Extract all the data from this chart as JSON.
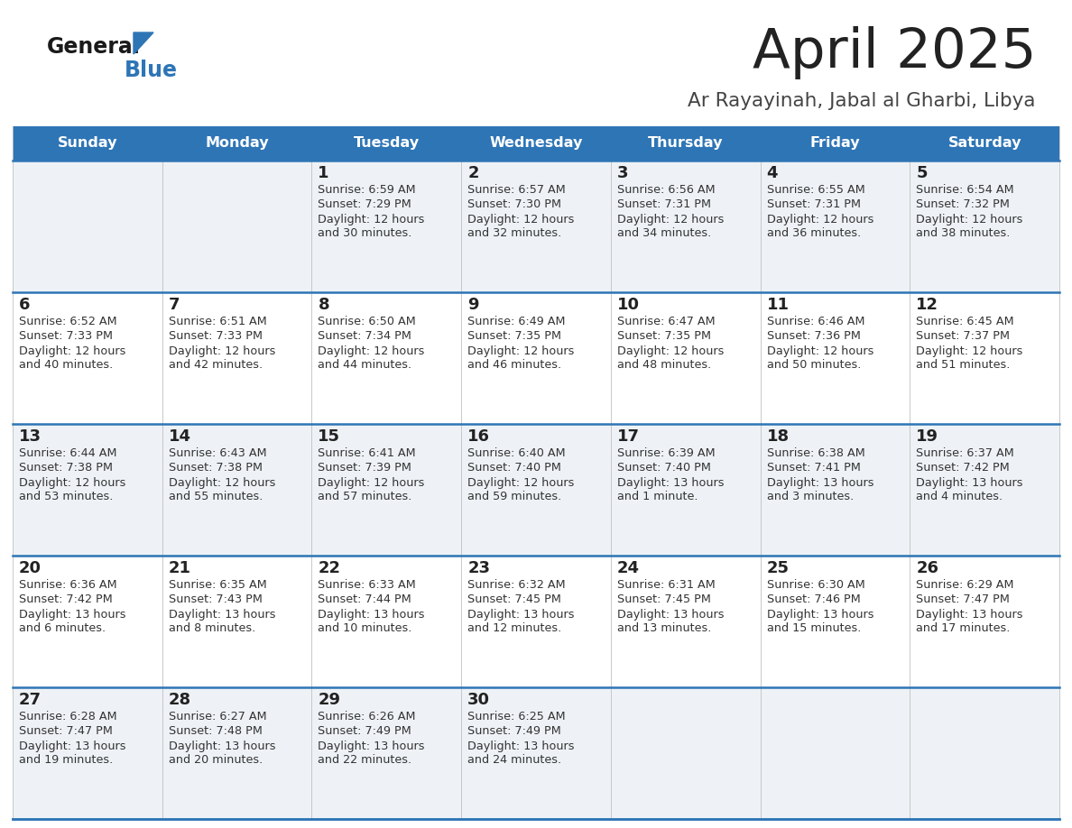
{
  "title": "April 2025",
  "subtitle": "Ar Rayayinah, Jabal al Gharbi, Libya",
  "header_bg_color": "#2E75B6",
  "header_text_color": "#FFFFFF",
  "day_names": [
    "Sunday",
    "Monday",
    "Tuesday",
    "Wednesday",
    "Thursday",
    "Friday",
    "Saturday"
  ],
  "odd_row_color": "#EEF2F6",
  "even_row_color": "#FFFFFF",
  "divider_color": "#2E75B6",
  "cell_divider_color": "#C0C0C0",
  "number_color": "#222222",
  "text_color": "#333333",
  "logo_general_color": "#1A1A1A",
  "logo_blue_color": "#2E75B6",
  "title_color": "#222222",
  "subtitle_color": "#444444",
  "cells": [
    [
      null,
      null,
      {
        "day": "1",
        "sunrise": "6:59 AM",
        "sunset": "7:29 PM",
        "daylight_h": "12 hours",
        "daylight_m": "and 30 minutes."
      },
      {
        "day": "2",
        "sunrise": "6:57 AM",
        "sunset": "7:30 PM",
        "daylight_h": "12 hours",
        "daylight_m": "and 32 minutes."
      },
      {
        "day": "3",
        "sunrise": "6:56 AM",
        "sunset": "7:31 PM",
        "daylight_h": "12 hours",
        "daylight_m": "and 34 minutes."
      },
      {
        "day": "4",
        "sunrise": "6:55 AM",
        "sunset": "7:31 PM",
        "daylight_h": "12 hours",
        "daylight_m": "and 36 minutes."
      },
      {
        "day": "5",
        "sunrise": "6:54 AM",
        "sunset": "7:32 PM",
        "daylight_h": "12 hours",
        "daylight_m": "and 38 minutes."
      }
    ],
    [
      {
        "day": "6",
        "sunrise": "6:52 AM",
        "sunset": "7:33 PM",
        "daylight_h": "12 hours",
        "daylight_m": "and 40 minutes."
      },
      {
        "day": "7",
        "sunrise": "6:51 AM",
        "sunset": "7:33 PM",
        "daylight_h": "12 hours",
        "daylight_m": "and 42 minutes."
      },
      {
        "day": "8",
        "sunrise": "6:50 AM",
        "sunset": "7:34 PM",
        "daylight_h": "12 hours",
        "daylight_m": "and 44 minutes."
      },
      {
        "day": "9",
        "sunrise": "6:49 AM",
        "sunset": "7:35 PM",
        "daylight_h": "12 hours",
        "daylight_m": "and 46 minutes."
      },
      {
        "day": "10",
        "sunrise": "6:47 AM",
        "sunset": "7:35 PM",
        "daylight_h": "12 hours",
        "daylight_m": "and 48 minutes."
      },
      {
        "day": "11",
        "sunrise": "6:46 AM",
        "sunset": "7:36 PM",
        "daylight_h": "12 hours",
        "daylight_m": "and 50 minutes."
      },
      {
        "day": "12",
        "sunrise": "6:45 AM",
        "sunset": "7:37 PM",
        "daylight_h": "12 hours",
        "daylight_m": "and 51 minutes."
      }
    ],
    [
      {
        "day": "13",
        "sunrise": "6:44 AM",
        "sunset": "7:38 PM",
        "daylight_h": "12 hours",
        "daylight_m": "and 53 minutes."
      },
      {
        "day": "14",
        "sunrise": "6:43 AM",
        "sunset": "7:38 PM",
        "daylight_h": "12 hours",
        "daylight_m": "and 55 minutes."
      },
      {
        "day": "15",
        "sunrise": "6:41 AM",
        "sunset": "7:39 PM",
        "daylight_h": "12 hours",
        "daylight_m": "and 57 minutes."
      },
      {
        "day": "16",
        "sunrise": "6:40 AM",
        "sunset": "7:40 PM",
        "daylight_h": "12 hours",
        "daylight_m": "and 59 minutes."
      },
      {
        "day": "17",
        "sunrise": "6:39 AM",
        "sunset": "7:40 PM",
        "daylight_h": "13 hours",
        "daylight_m": "and 1 minute."
      },
      {
        "day": "18",
        "sunrise": "6:38 AM",
        "sunset": "7:41 PM",
        "daylight_h": "13 hours",
        "daylight_m": "and 3 minutes."
      },
      {
        "day": "19",
        "sunrise": "6:37 AM",
        "sunset": "7:42 PM",
        "daylight_h": "13 hours",
        "daylight_m": "and 4 minutes."
      }
    ],
    [
      {
        "day": "20",
        "sunrise": "6:36 AM",
        "sunset": "7:42 PM",
        "daylight_h": "13 hours",
        "daylight_m": "and 6 minutes."
      },
      {
        "day": "21",
        "sunrise": "6:35 AM",
        "sunset": "7:43 PM",
        "daylight_h": "13 hours",
        "daylight_m": "and 8 minutes."
      },
      {
        "day": "22",
        "sunrise": "6:33 AM",
        "sunset": "7:44 PM",
        "daylight_h": "13 hours",
        "daylight_m": "and 10 minutes."
      },
      {
        "day": "23",
        "sunrise": "6:32 AM",
        "sunset": "7:45 PM",
        "daylight_h": "13 hours",
        "daylight_m": "and 12 minutes."
      },
      {
        "day": "24",
        "sunrise": "6:31 AM",
        "sunset": "7:45 PM",
        "daylight_h": "13 hours",
        "daylight_m": "and 13 minutes."
      },
      {
        "day": "25",
        "sunrise": "6:30 AM",
        "sunset": "7:46 PM",
        "daylight_h": "13 hours",
        "daylight_m": "and 15 minutes."
      },
      {
        "day": "26",
        "sunrise": "6:29 AM",
        "sunset": "7:47 PM",
        "daylight_h": "13 hours",
        "daylight_m": "and 17 minutes."
      }
    ],
    [
      {
        "day": "27",
        "sunrise": "6:28 AM",
        "sunset": "7:47 PM",
        "daylight_h": "13 hours",
        "daylight_m": "and 19 minutes."
      },
      {
        "day": "28",
        "sunrise": "6:27 AM",
        "sunset": "7:48 PM",
        "daylight_h": "13 hours",
        "daylight_m": "and 20 minutes."
      },
      {
        "day": "29",
        "sunrise": "6:26 AM",
        "sunset": "7:49 PM",
        "daylight_h": "13 hours",
        "daylight_m": "and 22 minutes."
      },
      {
        "day": "30",
        "sunrise": "6:25 AM",
        "sunset": "7:49 PM",
        "daylight_h": "13 hours",
        "daylight_m": "and 24 minutes."
      },
      null,
      null,
      null
    ]
  ]
}
